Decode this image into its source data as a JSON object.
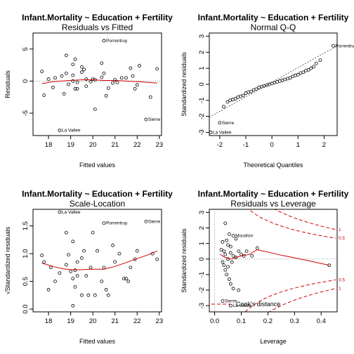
{
  "chart_data": [
    {
      "id": "rvf",
      "type": "scatter",
      "title": "Infant.Mortality ~ Education + Fertility",
      "subtitle": "Residuals vs Fitted",
      "xlabel": "Fitted values",
      "ylabel": "Residuals",
      "xlim": [
        17.3,
        23.1
      ],
      "ylim": [
        -8.5,
        7.5
      ],
      "xticks": [
        "18",
        "19",
        "20",
        "21",
        "22",
        "23"
      ],
      "yticks": [
        "-5",
        "0",
        "5"
      ],
      "points": [
        [
          17.7,
          1.5
        ],
        [
          17.8,
          -2.2
        ],
        [
          18.0,
          0.3
        ],
        [
          18.2,
          -1.0
        ],
        [
          18.3,
          0.5
        ],
        [
          18.6,
          0.8
        ],
        [
          18.7,
          -2.0
        ],
        [
          18.8,
          4.0
        ],
        [
          18.8,
          1.2
        ],
        [
          18.9,
          -0.5
        ],
        [
          19.1,
          2.6
        ],
        [
          19.1,
          0.9
        ],
        [
          19.1,
          0.0
        ],
        [
          19.2,
          -1.2
        ],
        [
          19.2,
          3.4
        ],
        [
          19.3,
          -0.2
        ],
        [
          19.3,
          -1.2
        ],
        [
          19.5,
          1.4
        ],
        [
          19.5,
          2.2
        ],
        [
          19.6,
          1.8
        ],
        [
          19.7,
          0.3
        ],
        [
          19.7,
          -0.8
        ],
        [
          19.9,
          -0.1
        ],
        [
          20.0,
          0.3
        ],
        [
          20.1,
          -4.4
        ],
        [
          20.1,
          0.2
        ],
        [
          20.4,
          2.8
        ],
        [
          20.4,
          0.6
        ],
        [
          20.5,
          1.2
        ],
        [
          20.6,
          -2.3
        ],
        [
          20.7,
          -1.1
        ],
        [
          20.9,
          -0.3
        ],
        [
          21.0,
          0.2
        ],
        [
          21.1,
          -0.2
        ],
        [
          21.3,
          0.5
        ],
        [
          21.5,
          0.5
        ],
        [
          21.7,
          2.0
        ],
        [
          21.8,
          0.8
        ],
        [
          21.9,
          -1.2
        ],
        [
          22.0,
          -0.6
        ],
        [
          22.1,
          2.4
        ],
        [
          22.6,
          -2.5
        ],
        [
          22.9,
          1.9
        ]
      ],
      "labeled_points": [
        {
          "x": 18.5,
          "y": -7.7,
          "text": "La Vallee"
        },
        {
          "x": 20.5,
          "y": 6.3,
          "text": "Porrentruy"
        },
        {
          "x": 22.4,
          "y": -6.0,
          "text": "Sierre"
        }
      ],
      "smooth": [
        [
          17.7,
          -0.4
        ],
        [
          18.2,
          -0.1
        ],
        [
          18.6,
          0.0
        ],
        [
          19.0,
          0.1
        ],
        [
          19.5,
          0.2
        ],
        [
          20.0,
          0.2
        ],
        [
          20.5,
          0.1
        ],
        [
          21.0,
          0.1
        ],
        [
          21.5,
          0.0
        ],
        [
          22.0,
          -0.1
        ],
        [
          22.5,
          -0.2
        ],
        [
          22.9,
          -0.3
        ]
      ]
    },
    {
      "id": "qq",
      "type": "scatter",
      "title": "Infant.Mortality ~ Education + Fertility",
      "subtitle": "Normal Q-Q",
      "xlabel": "Theoretical Quantiles",
      "ylabel": "Standardized residuals",
      "xlim": [
        -2.4,
        2.5
      ],
      "ylim": [
        -3.2,
        3.2
      ],
      "xticks": [
        "-2",
        "-1",
        "0",
        "1",
        "2"
      ],
      "yticks": [
        "-3",
        "-2",
        "-1",
        "0",
        "1",
        "2",
        "3"
      ],
      "points": [
        [
          -1.85,
          -1.4
        ],
        [
          -1.7,
          -1.1
        ],
        [
          -1.6,
          -1.0
        ],
        [
          -1.5,
          -0.95
        ],
        [
          -1.4,
          -0.9
        ],
        [
          -1.3,
          -0.8
        ],
        [
          -1.2,
          -0.75
        ],
        [
          -1.1,
          -0.7
        ],
        [
          -1.0,
          -0.55
        ],
        [
          -0.9,
          -0.5
        ],
        [
          -0.8,
          -0.45
        ],
        [
          -0.7,
          -0.35
        ],
        [
          -0.6,
          -0.3
        ],
        [
          -0.5,
          -0.2
        ],
        [
          -0.4,
          -0.15
        ],
        [
          -0.3,
          -0.1
        ],
        [
          -0.2,
          -0.05
        ],
        [
          -0.1,
          0.0
        ],
        [
          0.0,
          0.05
        ],
        [
          0.1,
          0.1
        ],
        [
          0.2,
          0.15
        ],
        [
          0.3,
          0.2
        ],
        [
          0.4,
          0.25
        ],
        [
          0.5,
          0.3
        ],
        [
          0.6,
          0.35
        ],
        [
          0.7,
          0.4
        ],
        [
          0.8,
          0.5
        ],
        [
          0.9,
          0.55
        ],
        [
          1.0,
          0.6
        ],
        [
          1.1,
          0.7
        ],
        [
          1.2,
          0.75
        ],
        [
          1.3,
          0.85
        ],
        [
          1.4,
          0.9
        ],
        [
          1.5,
          1.0
        ],
        [
          1.6,
          1.1
        ],
        [
          1.7,
          1.3
        ],
        [
          1.85,
          1.5
        ]
      ],
      "labeled_points": [
        {
          "x": -2.35,
          "y": -3.0,
          "text": "La Vallee"
        },
        {
          "x": -2.0,
          "y": -2.4,
          "text": "Sierre"
        },
        {
          "x": 2.35,
          "y": 2.4,
          "text": "Porrentruy"
        }
      ],
      "reference_line": [
        [
          -2.4,
          -2.05
        ],
        [
          2.5,
          2.4
        ]
      ]
    },
    {
      "id": "sl",
      "type": "scatter",
      "title": "Infant.Mortality ~ Education + Fertility",
      "subtitle": "Scale-Location",
      "xlabel": "Fitted values",
      "ylabel": "√Standardized residuals",
      "xlim": [
        17.3,
        23.1
      ],
      "ylim": [
        -0.05,
        1.8
      ],
      "xticks": [
        "18",
        "19",
        "20",
        "21",
        "22",
        "23"
      ],
      "yticks": [
        "0.0",
        "0.5",
        "1.0",
        "1.5"
      ],
      "points": [
        [
          17.7,
          0.97
        ],
        [
          17.8,
          0.85
        ],
        [
          18.0,
          0.35
        ],
        [
          18.1,
          0.75
        ],
        [
          18.3,
          0.5
        ],
        [
          18.5,
          0.65
        ],
        [
          18.8,
          1.38
        ],
        [
          18.8,
          0.8
        ],
        [
          18.9,
          0.98
        ],
        [
          19.0,
          0.68
        ],
        [
          19.1,
          1.22
        ],
        [
          19.1,
          0.55
        ],
        [
          19.1,
          0.06
        ],
        [
          19.2,
          0.7
        ],
        [
          19.2,
          0.4
        ],
        [
          19.3,
          0.85
        ],
        [
          19.3,
          0.6
        ],
        [
          19.5,
          0.92
        ],
        [
          19.5,
          0.25
        ],
        [
          19.6,
          1.05
        ],
        [
          19.7,
          0.6
        ],
        [
          19.8,
          0.25
        ],
        [
          19.9,
          0.75
        ],
        [
          20.0,
          1.38
        ],
        [
          20.1,
          0.25
        ],
        [
          20.2,
          1.05
        ],
        [
          20.4,
          0.5
        ],
        [
          20.5,
          0.75
        ],
        [
          20.6,
          0.35
        ],
        [
          20.7,
          0.25
        ],
        [
          20.9,
          1.15
        ],
        [
          21.0,
          0.85
        ],
        [
          21.2,
          1.0
        ],
        [
          21.4,
          0.55
        ],
        [
          21.5,
          0.55
        ],
        [
          21.6,
          0.5
        ],
        [
          21.7,
          0.75
        ],
        [
          21.9,
          0.9
        ],
        [
          22.0,
          1.05
        ],
        [
          22.7,
          1.0
        ],
        [
          22.9,
          0.9
        ]
      ],
      "labeled_points": [
        {
          "x": 18.5,
          "y": 1.75,
          "text": "La Vallee"
        },
        {
          "x": 20.5,
          "y": 1.55,
          "text": "Porrentruy"
        },
        {
          "x": 22.4,
          "y": 1.58,
          "text": "Sierre"
        }
      ],
      "smooth": [
        [
          17.7,
          0.83
        ],
        [
          18.2,
          0.77
        ],
        [
          18.6,
          0.73
        ],
        [
          19.0,
          0.71
        ],
        [
          19.5,
          0.71
        ],
        [
          20.0,
          0.72
        ],
        [
          20.5,
          0.72
        ],
        [
          21.0,
          0.77
        ],
        [
          21.5,
          0.84
        ],
        [
          22.0,
          0.91
        ],
        [
          22.5,
          0.98
        ],
        [
          22.9,
          1.05
        ]
      ]
    },
    {
      "id": "rvl",
      "type": "scatter",
      "title": "Infant.Mortality ~ Education + Fertility",
      "subtitle": "Residuals vs Leverage",
      "xlabel": "Leverage",
      "ylabel": "Standardized residuals",
      "xlim": [
        -0.02,
        0.46
      ],
      "ylim": [
        -3.4,
        3.2
      ],
      "xticks": [
        "0.0",
        "0.1",
        "0.2",
        "0.3",
        "0.4"
      ],
      "yticks": [
        "-3",
        "-2",
        "-1",
        "0",
        "1",
        "2",
        "3"
      ],
      "points": [
        [
          0.025,
          0.6
        ],
        [
          0.03,
          1.1
        ],
        [
          0.03,
          -0.2
        ],
        [
          0.035,
          0.5
        ],
        [
          0.035,
          -0.4
        ],
        [
          0.04,
          0.3
        ],
        [
          0.04,
          -0.7
        ],
        [
          0.04,
          2.3
        ],
        [
          0.045,
          1.2
        ],
        [
          0.045,
          -1.0
        ],
        [
          0.05,
          0.0
        ],
        [
          0.05,
          0.9
        ],
        [
          0.05,
          -0.5
        ],
        [
          0.055,
          1.6
        ],
        [
          0.055,
          -1.3
        ],
        [
          0.06,
          0.4
        ],
        [
          0.06,
          -1.6
        ],
        [
          0.06,
          0.8
        ],
        [
          0.065,
          -0.2
        ],
        [
          0.07,
          0.2
        ],
        [
          0.07,
          -1.9
        ],
        [
          0.08,
          1.3
        ],
        [
          0.08,
          0.1
        ],
        [
          0.09,
          0.5
        ],
        [
          0.09,
          -2.0
        ],
        [
          0.1,
          0.3
        ],
        [
          0.11,
          0.2
        ],
        [
          0.12,
          0.5
        ],
        [
          0.14,
          0.2
        ],
        [
          0.16,
          0.7
        ],
        [
          0.43,
          -0.4
        ]
      ],
      "labeled_points": [
        {
          "x": 0.07,
          "y": 1.5,
          "text": "Moudion"
        },
        {
          "x": 0.03,
          "y": -2.7,
          "text": "Sierre"
        },
        {
          "x": 0.06,
          "y": -3.0,
          "text": "La Vallee"
        }
      ],
      "smooth": [
        [
          0.02,
          0.3
        ],
        [
          0.04,
          0.1
        ],
        [
          0.06,
          0.0
        ],
        [
          0.08,
          0.1
        ],
        [
          0.1,
          0.2
        ],
        [
          0.13,
          0.3
        ],
        [
          0.16,
          0.6
        ],
        [
          0.25,
          0.25
        ],
        [
          0.35,
          -0.1
        ],
        [
          0.43,
          -0.4
        ]
      ],
      "cook_levels": [
        0.5,
        1
      ],
      "cook_label_values": [
        "0.5",
        "1",
        "0.5",
        "1"
      ],
      "legend": "Cook's distance"
    }
  ]
}
